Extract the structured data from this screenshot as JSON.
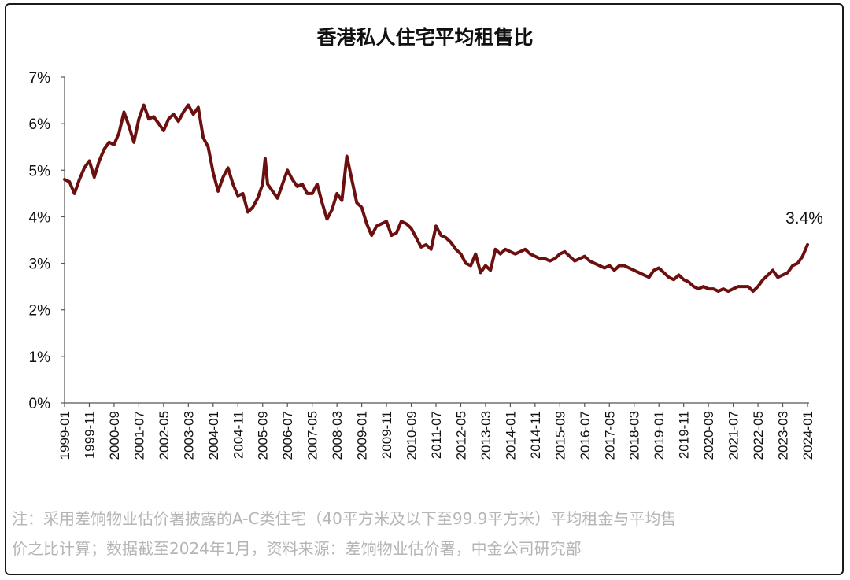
{
  "chart_data": {
    "type": "line",
    "title": "香港私人住宅平均租售比",
    "xlabel": "",
    "ylabel": "",
    "ylim": [
      0,
      7
    ],
    "yticks": [
      "0%",
      "1%",
      "2%",
      "3%",
      "4%",
      "5%",
      "6%",
      "7%"
    ],
    "xticks": [
      "1999-01",
      "1999-11",
      "2000-09",
      "2001-07",
      "2002-05",
      "2003-03",
      "2004-01",
      "2004-11",
      "2005-09",
      "2006-07",
      "2007-05",
      "2008-03",
      "2009-01",
      "2009-11",
      "2010-09",
      "2011-07",
      "2012-05",
      "2013-03",
      "2014-01",
      "2014-11",
      "2015-09",
      "2016-07",
      "2017-05",
      "2018-03",
      "2019-01",
      "2019-11",
      "2020-09",
      "2021-07",
      "2022-05",
      "2023-03",
      "2024-01"
    ],
    "grid": false,
    "legend": "none",
    "color": "#6b0f0f",
    "series": [
      {
        "values": [
          [
            "1999-01",
            4.8
          ],
          [
            "1999-03",
            4.75
          ],
          [
            "1999-05",
            4.5
          ],
          [
            "1999-07",
            4.8
          ],
          [
            "1999-09",
            5.05
          ],
          [
            "1999-11",
            5.2
          ],
          [
            "2000-01",
            4.85
          ],
          [
            "2000-03",
            5.2
          ],
          [
            "2000-05",
            5.45
          ],
          [
            "2000-07",
            5.6
          ],
          [
            "2000-09",
            5.55
          ],
          [
            "2000-11",
            5.8
          ],
          [
            "2001-01",
            6.25
          ],
          [
            "2001-03",
            5.95
          ],
          [
            "2001-05",
            5.6
          ],
          [
            "2001-07",
            6.1
          ],
          [
            "2001-09",
            6.4
          ],
          [
            "2001-11",
            6.1
          ],
          [
            "2002-01",
            6.15
          ],
          [
            "2002-03",
            6.0
          ],
          [
            "2002-05",
            5.85
          ],
          [
            "2002-07",
            6.1
          ],
          [
            "2002-09",
            6.2
          ],
          [
            "2002-11",
            6.05
          ],
          [
            "2003-01",
            6.25
          ],
          [
            "2003-03",
            6.4
          ],
          [
            "2003-05",
            6.2
          ],
          [
            "2003-07",
            6.35
          ],
          [
            "2003-09",
            5.7
          ],
          [
            "2003-11",
            5.5
          ],
          [
            "2004-01",
            4.95
          ],
          [
            "2004-03",
            4.55
          ],
          [
            "2004-05",
            4.85
          ],
          [
            "2004-07",
            5.05
          ],
          [
            "2004-09",
            4.7
          ],
          [
            "2004-11",
            4.45
          ],
          [
            "2005-01",
            4.5
          ],
          [
            "2005-03",
            4.1
          ],
          [
            "2005-05",
            4.2
          ],
          [
            "2005-07",
            4.4
          ],
          [
            "2005-09",
            4.7
          ],
          [
            "2005-10",
            5.25
          ],
          [
            "2005-11",
            4.7
          ],
          [
            "2006-01",
            4.55
          ],
          [
            "2006-03",
            4.4
          ],
          [
            "2006-05",
            4.7
          ],
          [
            "2006-07",
            5.0
          ],
          [
            "2006-09",
            4.8
          ],
          [
            "2006-11",
            4.65
          ],
          [
            "2007-01",
            4.7
          ],
          [
            "2007-03",
            4.5
          ],
          [
            "2007-05",
            4.5
          ],
          [
            "2007-07",
            4.7
          ],
          [
            "2007-09",
            4.3
          ],
          [
            "2007-11",
            3.95
          ],
          [
            "2008-01",
            4.15
          ],
          [
            "2008-03",
            4.5
          ],
          [
            "2008-05",
            4.35
          ],
          [
            "2008-07",
            5.3
          ],
          [
            "2008-09",
            4.8
          ],
          [
            "2008-11",
            4.3
          ],
          [
            "2009-01",
            4.2
          ],
          [
            "2009-03",
            3.85
          ],
          [
            "2009-05",
            3.6
          ],
          [
            "2009-07",
            3.8
          ],
          [
            "2009-09",
            3.85
          ],
          [
            "2009-11",
            3.9
          ],
          [
            "2010-01",
            3.6
          ],
          [
            "2010-03",
            3.65
          ],
          [
            "2010-05",
            3.9
          ],
          [
            "2010-07",
            3.85
          ],
          [
            "2010-09",
            3.75
          ],
          [
            "2010-11",
            3.55
          ],
          [
            "2011-01",
            3.35
          ],
          [
            "2011-03",
            3.4
          ],
          [
            "2011-05",
            3.3
          ],
          [
            "2011-07",
            3.8
          ],
          [
            "2011-09",
            3.6
          ],
          [
            "2011-11",
            3.55
          ],
          [
            "2012-01",
            3.45
          ],
          [
            "2012-03",
            3.3
          ],
          [
            "2012-05",
            3.2
          ],
          [
            "2012-07",
            3.0
          ],
          [
            "2012-09",
            2.95
          ],
          [
            "2012-11",
            3.2
          ],
          [
            "2013-01",
            2.8
          ],
          [
            "2013-03",
            2.95
          ],
          [
            "2013-05",
            2.85
          ],
          [
            "2013-07",
            3.3
          ],
          [
            "2013-09",
            3.2
          ],
          [
            "2013-11",
            3.3
          ],
          [
            "2014-01",
            3.25
          ],
          [
            "2014-03",
            3.2
          ],
          [
            "2014-05",
            3.25
          ],
          [
            "2014-07",
            3.3
          ],
          [
            "2014-09",
            3.2
          ],
          [
            "2014-11",
            3.15
          ],
          [
            "2015-01",
            3.1
          ],
          [
            "2015-03",
            3.1
          ],
          [
            "2015-05",
            3.05
          ],
          [
            "2015-07",
            3.1
          ],
          [
            "2015-09",
            3.2
          ],
          [
            "2015-11",
            3.25
          ],
          [
            "2016-01",
            3.15
          ],
          [
            "2016-03",
            3.05
          ],
          [
            "2016-05",
            3.1
          ],
          [
            "2016-07",
            3.15
          ],
          [
            "2016-09",
            3.05
          ],
          [
            "2016-11",
            3.0
          ],
          [
            "2017-01",
            2.95
          ],
          [
            "2017-03",
            2.9
          ],
          [
            "2017-05",
            2.95
          ],
          [
            "2017-07",
            2.85
          ],
          [
            "2017-09",
            2.95
          ],
          [
            "2017-11",
            2.95
          ],
          [
            "2018-01",
            2.9
          ],
          [
            "2018-03",
            2.85
          ],
          [
            "2018-05",
            2.8
          ],
          [
            "2018-07",
            2.75
          ],
          [
            "2018-09",
            2.7
          ],
          [
            "2018-11",
            2.85
          ],
          [
            "2019-01",
            2.9
          ],
          [
            "2019-03",
            2.8
          ],
          [
            "2019-05",
            2.7
          ],
          [
            "2019-07",
            2.65
          ],
          [
            "2019-09",
            2.75
          ],
          [
            "2019-11",
            2.65
          ],
          [
            "2020-01",
            2.6
          ],
          [
            "2020-03",
            2.5
          ],
          [
            "2020-05",
            2.45
          ],
          [
            "2020-07",
            2.5
          ],
          [
            "2020-09",
            2.45
          ],
          [
            "2020-11",
            2.45
          ],
          [
            "2021-01",
            2.4
          ],
          [
            "2021-03",
            2.45
          ],
          [
            "2021-05",
            2.4
          ],
          [
            "2021-07",
            2.45
          ],
          [
            "2021-09",
            2.5
          ],
          [
            "2021-11",
            2.5
          ],
          [
            "2022-01",
            2.5
          ],
          [
            "2022-03",
            2.4
          ],
          [
            "2022-05",
            2.5
          ],
          [
            "2022-07",
            2.65
          ],
          [
            "2022-09",
            2.75
          ],
          [
            "2022-11",
            2.85
          ],
          [
            "2023-01",
            2.7
          ],
          [
            "2023-03",
            2.75
          ],
          [
            "2023-05",
            2.8
          ],
          [
            "2023-07",
            2.95
          ],
          [
            "2023-09",
            3.0
          ],
          [
            "2023-11",
            3.15
          ],
          [
            "2024-01",
            3.4
          ]
        ]
      }
    ],
    "annotations": [
      {
        "text": "3.4%",
        "x": "2024-01",
        "y": 3.4
      }
    ]
  },
  "note": {
    "line1": "注：采用差饷物业估价署披露的A-C类住宅（40平方米及以下至99.9平方米）平均租金与平均售",
    "line2": "价之比计算；数据截至2024年1月，资料来源：差饷物业估价署，中金公司研究部"
  }
}
